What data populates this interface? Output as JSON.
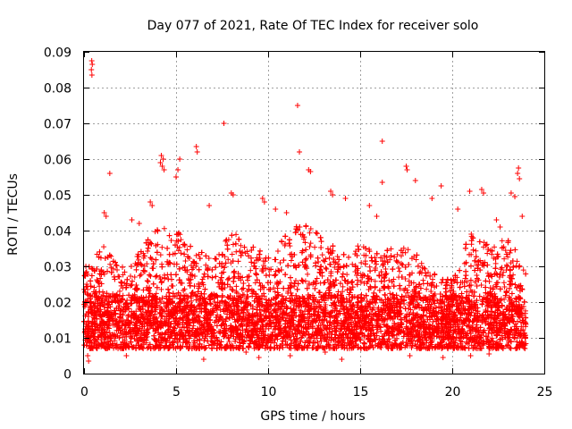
{
  "chart_data": {
    "type": "scatter",
    "title": "Day 077 of 2021, Rate Of TEC Index for receiver solo",
    "xlabel": "GPS time / hours",
    "ylabel": "ROTI / TECUs",
    "xlim": [
      0,
      25
    ],
    "ylim": [
      0,
      0.09
    ],
    "xticks": [
      "0",
      "5",
      "10",
      "15",
      "20",
      "25"
    ],
    "xtick_values": [
      0,
      5,
      10,
      15,
      20,
      25
    ],
    "yticks": [
      "0",
      "0.01",
      "0.02",
      "0.03",
      "0.04",
      "0.05",
      "0.06",
      "0.07",
      "0.08",
      "0.09"
    ],
    "ytick_values": [
      0,
      0.01,
      0.02,
      0.03,
      0.04,
      0.05,
      0.06,
      0.07,
      0.08,
      0.09
    ],
    "grid": true,
    "marker": "plus",
    "color": "#ff0000",
    "series": [
      {
        "name": "ROTI",
        "points": [
          [
            0.42,
            0.0875
          ],
          [
            0.45,
            0.0865
          ],
          [
            0.4,
            0.085
          ],
          [
            0.43,
            0.0835
          ],
          [
            7.6,
            0.07
          ],
          [
            11.6,
            0.075
          ],
          [
            11.7,
            0.062
          ],
          [
            16.2,
            0.065
          ],
          [
            1.4,
            0.056
          ],
          [
            6.1,
            0.0635
          ],
          [
            6.15,
            0.062
          ],
          [
            4.2,
            0.061
          ],
          [
            4.3,
            0.06
          ],
          [
            4.15,
            0.059
          ],
          [
            4.25,
            0.058
          ],
          [
            4.35,
            0.057
          ],
          [
            5.2,
            0.06
          ],
          [
            5.1,
            0.057
          ],
          [
            5.0,
            0.055
          ],
          [
            12.2,
            0.057
          ],
          [
            12.3,
            0.0565
          ],
          [
            17.5,
            0.058
          ],
          [
            17.55,
            0.057
          ],
          [
            23.6,
            0.0575
          ],
          [
            23.55,
            0.056
          ],
          [
            23.65,
            0.0545
          ],
          [
            16.2,
            0.0535
          ],
          [
            18.0,
            0.054
          ],
          [
            19.4,
            0.0525
          ],
          [
            20.95,
            0.051
          ],
          [
            21.6,
            0.0515
          ],
          [
            21.7,
            0.0505
          ],
          [
            13.4,
            0.051
          ],
          [
            8.0,
            0.0505
          ],
          [
            8.1,
            0.05
          ],
          [
            9.7,
            0.049
          ],
          [
            9.8,
            0.048
          ],
          [
            13.5,
            0.05
          ],
          [
            14.2,
            0.049
          ],
          [
            15.5,
            0.047
          ],
          [
            18.9,
            0.049
          ],
          [
            23.2,
            0.0505
          ],
          [
            23.4,
            0.0495
          ],
          [
            3.6,
            0.048
          ],
          [
            3.7,
            0.047
          ],
          [
            0.1,
            0.03
          ],
          [
            0.15,
            0.025
          ],
          [
            0.2,
            0.005
          ],
          [
            0.25,
            0.0035
          ],
          [
            3.0,
            0.042
          ],
          [
            2.6,
            0.043
          ],
          [
            1.1,
            0.045
          ],
          [
            1.2,
            0.044
          ],
          [
            6.8,
            0.047
          ],
          [
            10.4,
            0.046
          ],
          [
            11.0,
            0.045
          ],
          [
            15.9,
            0.044
          ],
          [
            20.3,
            0.046
          ],
          [
            22.4,
            0.043
          ],
          [
            22.6,
            0.041
          ],
          [
            23.8,
            0.044
          ],
          [
            6.5,
            0.004
          ],
          [
            9.5,
            0.0045
          ],
          [
            14.0,
            0.004
          ],
          [
            19.5,
            0.0045
          ],
          [
            21.0,
            0.005
          ],
          [
            2.3,
            0.005
          ],
          [
            17.7,
            0.005
          ],
          [
            22.0,
            0.0055
          ],
          [
            11.2,
            0.005
          ],
          [
            8.8,
            0.006
          ],
          [
            13.1,
            0.006
          ]
        ]
      }
    ],
    "dense_band": {
      "note": "Dense cloud of samples across the full day, mostly between 0.007 and 0.030 TECU, with enhanced activity near 4-5 h, 8-9 h, 11-13 h and 20-24 h.",
      "x_range": [
        0,
        24
      ],
      "activity_profile": [
        [
          0,
          0.028
        ],
        [
          1,
          0.036
        ],
        [
          2,
          0.03
        ],
        [
          3,
          0.034
        ],
        [
          4,
          0.042
        ],
        [
          5,
          0.04
        ],
        [
          6,
          0.036
        ],
        [
          7,
          0.032
        ],
        [
          8,
          0.04
        ],
        [
          9,
          0.036
        ],
        [
          10,
          0.034
        ],
        [
          11,
          0.04
        ],
        [
          12,
          0.042
        ],
        [
          13,
          0.038
        ],
        [
          14,
          0.034
        ],
        [
          15,
          0.036
        ],
        [
          16,
          0.034
        ],
        [
          17,
          0.036
        ],
        [
          18,
          0.034
        ],
        [
          19,
          0.028
        ],
        [
          20,
          0.026
        ],
        [
          21,
          0.04
        ],
        [
          22,
          0.036
        ],
        [
          23,
          0.038
        ],
        [
          24,
          0.03
        ]
      ],
      "base_low": 0.007,
      "count": 9000
    }
  }
}
